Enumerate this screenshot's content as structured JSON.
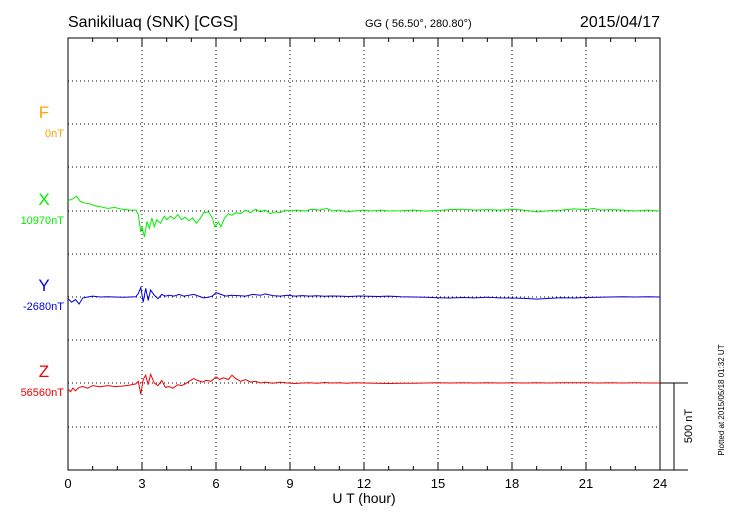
{
  "header": {
    "station": "Sanikiluaq (SNK)  [CGS]",
    "coords": "GG ( 56.50°, 280.80°)",
    "date": "2015/04/17"
  },
  "chart_data": {
    "type": "line",
    "xlabel": "U T (hour)",
    "xlim": [
      0,
      24
    ],
    "x_ticks": [
      "0",
      "3",
      "6",
      "9",
      "12",
      "15",
      "18",
      "21",
      "24"
    ],
    "scale_bar_label": "500 nT",
    "plotted_note": "Plotted at 2015/05/18 01:32 UT",
    "series": [
      {
        "name": "F",
        "baseline_label": "0nT",
        "color": "#ffa500",
        "points": []
      },
      {
        "name": "X",
        "baseline_label": "10970nT",
        "color": "#00ee00",
        "points": [
          [
            0.0,
            60
          ],
          [
            0.2,
            70
          ],
          [
            0.35,
            85
          ],
          [
            0.5,
            55
          ],
          [
            0.7,
            45
          ],
          [
            0.9,
            40
          ],
          [
            1.1,
            30
          ],
          [
            1.3,
            25
          ],
          [
            1.6,
            15
          ],
          [
            1.9,
            20
          ],
          [
            2.2,
            10
          ],
          [
            2.5,
            5
          ],
          [
            2.75,
            5
          ],
          [
            2.85,
            -20
          ],
          [
            2.95,
            -120
          ],
          [
            3.0,
            -90
          ],
          [
            3.1,
            -150
          ],
          [
            3.2,
            -60
          ],
          [
            3.3,
            -100
          ],
          [
            3.4,
            -40
          ],
          [
            3.5,
            -90
          ],
          [
            3.6,
            -50
          ],
          [
            3.75,
            -70
          ],
          [
            3.9,
            -30
          ],
          [
            4.0,
            -50
          ],
          [
            4.15,
            -30
          ],
          [
            4.3,
            -45
          ],
          [
            4.45,
            -20
          ],
          [
            4.6,
            -50
          ],
          [
            4.75,
            -35
          ],
          [
            4.9,
            -55
          ],
          [
            5.05,
            -40
          ],
          [
            5.2,
            -70
          ],
          [
            5.35,
            -45
          ],
          [
            5.5,
            -10
          ],
          [
            5.7,
            -5
          ],
          [
            5.85,
            -40
          ],
          [
            5.95,
            -90
          ],
          [
            6.1,
            -65
          ],
          [
            6.2,
            -90
          ],
          [
            6.35,
            -40
          ],
          [
            6.5,
            -15
          ],
          [
            6.65,
            -25
          ],
          [
            6.8,
            -10
          ],
          [
            7.0,
            -15
          ],
          [
            7.2,
            5
          ],
          [
            7.4,
            -10
          ],
          [
            7.6,
            10
          ],
          [
            7.8,
            -5
          ],
          [
            8.0,
            5
          ],
          [
            8.2,
            -15
          ],
          [
            8.4,
            -5
          ],
          [
            8.6,
            -10
          ],
          [
            8.8,
            5
          ],
          [
            9.0,
            0
          ],
          [
            9.3,
            5
          ],
          [
            9.6,
            0
          ],
          [
            9.9,
            10
          ],
          [
            10.2,
            5
          ],
          [
            10.5,
            15
          ],
          [
            10.7,
            0
          ],
          [
            11.0,
            5
          ],
          [
            11.3,
            -5
          ],
          [
            11.6,
            0
          ],
          [
            12.0,
            5
          ],
          [
            12.3,
            0
          ],
          [
            12.7,
            5
          ],
          [
            13.0,
            0
          ],
          [
            13.5,
            2
          ],
          [
            14.0,
            5
          ],
          [
            14.5,
            0
          ],
          [
            15.0,
            3
          ],
          [
            15.5,
            8
          ],
          [
            16.0,
            10
          ],
          [
            16.5,
            5
          ],
          [
            17.0,
            8
          ],
          [
            17.5,
            5
          ],
          [
            18.0,
            10
          ],
          [
            18.5,
            5
          ],
          [
            19.0,
            -5
          ],
          [
            19.5,
            2
          ],
          [
            20.0,
            5
          ],
          [
            20.5,
            12
          ],
          [
            21.0,
            8
          ],
          [
            21.3,
            15
          ],
          [
            21.6,
            5
          ],
          [
            22.0,
            8
          ],
          [
            22.5,
            5
          ],
          [
            23.0,
            0
          ],
          [
            23.5,
            5
          ],
          [
            24.0,
            0
          ]
        ]
      },
      {
        "name": "Y",
        "baseline_label": "-2680nT",
        "color": "#0000dd",
        "points": [
          [
            0.0,
            -10
          ],
          [
            0.15,
            -30
          ],
          [
            0.3,
            -15
          ],
          [
            0.45,
            -40
          ],
          [
            0.6,
            -5
          ],
          [
            0.8,
            0
          ],
          [
            1.0,
            5
          ],
          [
            1.3,
            0
          ],
          [
            1.6,
            2
          ],
          [
            1.9,
            0
          ],
          [
            2.2,
            -2
          ],
          [
            2.5,
            0
          ],
          [
            2.75,
            2
          ],
          [
            2.85,
            20
          ],
          [
            2.95,
            55
          ],
          [
            3.05,
            -30
          ],
          [
            3.15,
            50
          ],
          [
            3.25,
            -20
          ],
          [
            3.35,
            40
          ],
          [
            3.5,
            10
          ],
          [
            3.65,
            -10
          ],
          [
            3.8,
            15
          ],
          [
            3.95,
            5
          ],
          [
            4.1,
            10
          ],
          [
            4.3,
            5
          ],
          [
            4.5,
            15
          ],
          [
            4.7,
            5
          ],
          [
            4.9,
            10
          ],
          [
            5.1,
            15
          ],
          [
            5.3,
            5
          ],
          [
            5.5,
            -5
          ],
          [
            5.7,
            -2
          ],
          [
            5.85,
            5
          ],
          [
            6.0,
            25
          ],
          [
            6.2,
            15
          ],
          [
            6.4,
            5
          ],
          [
            6.6,
            10
          ],
          [
            6.9,
            8
          ],
          [
            7.2,
            5
          ],
          [
            7.5,
            15
          ],
          [
            7.8,
            10
          ],
          [
            8.0,
            18
          ],
          [
            8.3,
            8
          ],
          [
            8.6,
            5
          ],
          [
            8.9,
            10
          ],
          [
            9.2,
            5
          ],
          [
            9.5,
            8
          ],
          [
            9.8,
            5
          ],
          [
            10.1,
            7
          ],
          [
            10.4,
            4
          ],
          [
            10.7,
            6
          ],
          [
            11.0,
            5
          ],
          [
            11.4,
            3
          ],
          [
            11.8,
            6
          ],
          [
            12.2,
            4
          ],
          [
            12.6,
            3
          ],
          [
            13.0,
            5
          ],
          [
            13.5,
            2
          ],
          [
            14.0,
            0
          ],
          [
            14.5,
            -2
          ],
          [
            15.0,
            -4
          ],
          [
            15.5,
            -6
          ],
          [
            16.0,
            -3
          ],
          [
            16.5,
            -5
          ],
          [
            17.0,
            -2
          ],
          [
            17.5,
            -5
          ],
          [
            18.0,
            -6
          ],
          [
            18.5,
            -8
          ],
          [
            19.0,
            -12
          ],
          [
            19.5,
            -8
          ],
          [
            20.0,
            -4
          ],
          [
            20.5,
            -6
          ],
          [
            21.0,
            -3
          ],
          [
            21.5,
            -2
          ],
          [
            22.0,
            0
          ],
          [
            22.5,
            1
          ],
          [
            23.0,
            0
          ],
          [
            23.5,
            1
          ],
          [
            24.0,
            0
          ]
        ]
      },
      {
        "name": "Z",
        "baseline_label": "56560nT",
        "color": "#ee0000",
        "points": [
          [
            0.0,
            -35
          ],
          [
            0.1,
            -50
          ],
          [
            0.2,
            -30
          ],
          [
            0.3,
            -45
          ],
          [
            0.45,
            -25
          ],
          [
            0.6,
            -20
          ],
          [
            0.8,
            -30
          ],
          [
            1.0,
            -15
          ],
          [
            1.3,
            -22
          ],
          [
            1.6,
            -15
          ],
          [
            1.9,
            -20
          ],
          [
            2.2,
            -18
          ],
          [
            2.5,
            -12
          ],
          [
            2.75,
            -5
          ],
          [
            2.85,
            10
          ],
          [
            2.95,
            -65
          ],
          [
            3.05,
            20
          ],
          [
            3.15,
            45
          ],
          [
            3.25,
            -10
          ],
          [
            3.35,
            50
          ],
          [
            3.5,
            0
          ],
          [
            3.65,
            -15
          ],
          [
            3.8,
            15
          ],
          [
            3.95,
            -25
          ],
          [
            4.1,
            -20
          ],
          [
            4.25,
            -30
          ],
          [
            4.45,
            -10
          ],
          [
            4.6,
            -15
          ],
          [
            4.75,
            -5
          ],
          [
            4.9,
            10
          ],
          [
            5.1,
            25
          ],
          [
            5.25,
            15
          ],
          [
            5.45,
            5
          ],
          [
            5.6,
            15
          ],
          [
            5.8,
            10
          ],
          [
            6.0,
            35
          ],
          [
            6.15,
            20
          ],
          [
            6.3,
            30
          ],
          [
            6.5,
            20
          ],
          [
            6.65,
            45
          ],
          [
            6.8,
            25
          ],
          [
            7.0,
            10
          ],
          [
            7.2,
            20
          ],
          [
            7.4,
            5
          ],
          [
            7.6,
            10
          ],
          [
            7.8,
            0
          ],
          [
            8.0,
            5
          ],
          [
            8.3,
            -2
          ],
          [
            8.6,
            5
          ],
          [
            8.9,
            0
          ],
          [
            9.2,
            -3
          ],
          [
            9.5,
            0
          ],
          [
            9.8,
            2
          ],
          [
            10.1,
            -2
          ],
          [
            10.4,
            3
          ],
          [
            10.7,
            0
          ],
          [
            11.0,
            2
          ],
          [
            11.3,
            -1
          ],
          [
            11.6,
            1
          ],
          [
            12.0,
            0
          ],
          [
            12.5,
            -2
          ],
          [
            13.0,
            -3
          ],
          [
            13.5,
            -2
          ],
          [
            14.0,
            -1
          ],
          [
            14.5,
            0
          ],
          [
            15.0,
            1
          ],
          [
            15.5,
            0
          ],
          [
            16.0,
            1
          ],
          [
            16.5,
            0
          ],
          [
            17.0,
            1
          ],
          [
            17.5,
            0
          ],
          [
            18.0,
            1
          ],
          [
            18.5,
            0
          ],
          [
            19.0,
            1
          ],
          [
            19.5,
            0
          ],
          [
            20.0,
            1
          ],
          [
            20.5,
            2
          ],
          [
            21.0,
            1
          ],
          [
            21.5,
            0
          ],
          [
            22.0,
            1
          ],
          [
            22.5,
            0
          ],
          [
            23.0,
            1
          ],
          [
            23.5,
            0
          ],
          [
            24.0,
            0
          ]
        ]
      }
    ]
  }
}
